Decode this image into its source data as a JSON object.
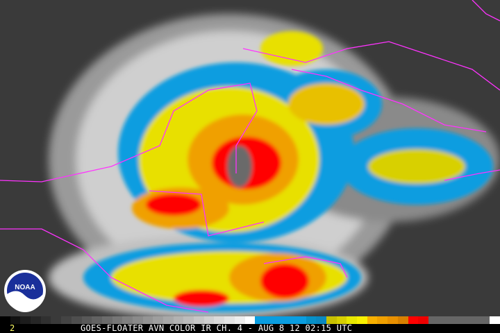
{
  "image": {
    "frame_number": "2",
    "caption": "GOES-FLOATER AVN COLOR IR CH. 4 - AUG 8 12 02:15 UTC",
    "logo": "NOAA",
    "colors": {
      "background_gray": "#3a3a3a",
      "cloud_blue": "#0a9de0",
      "cloud_yellow": "#e8e000",
      "cloud_orange": "#f0a000",
      "cloud_red": "#ff0000",
      "eye_gray": "#6a6a6a",
      "borders": "#ff33ff"
    },
    "colorbar": [
      "#000",
      "#111",
      "#1c1c1c",
      "#262626",
      "#303030",
      "#3a3a3a",
      "#444",
      "#4e4e4e",
      "#585858",
      "#626262",
      "#6c6c6c",
      "#767676",
      "#808080",
      "#8a8a8a",
      "#949494",
      "#9e9e9e",
      "#a8a8a8",
      "#b2b2b2",
      "#bcbcbc",
      "#c6c6c6",
      "#d0d0d0",
      "#dadada",
      "#e4e4e4",
      "#eeeeee",
      "#fff",
      "#0a9de0",
      "#0a9de0",
      "#0a9de0",
      "#0a9de0",
      "#0a9de0",
      "#0590c8",
      "#0a88c0",
      "#c8c000",
      "#d8d000",
      "#e8e800",
      "#f8f000",
      "#f8b000",
      "#f0a000",
      "#e89000",
      "#d88000",
      "#ff0000",
      "#ee0000",
      "#666",
      "#666",
      "#666",
      "#666",
      "#666",
      "#666",
      "#fff"
    ]
  }
}
